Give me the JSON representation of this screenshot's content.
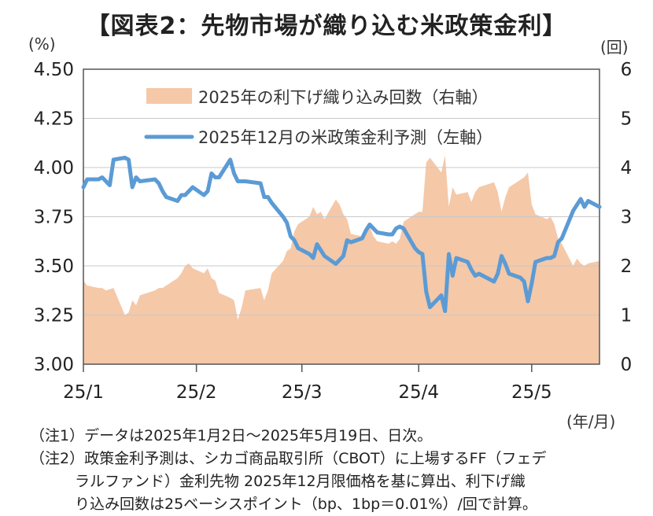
{
  "title": "【図表2：先物市場が織り込む米政策金利】",
  "left_unit": "(%)",
  "right_unit": "(回)",
  "x_unit": "(年/月)",
  "notes": [
    "（注1）データは2025年1月2日～2025年5月19日、日次。",
    "（注2）政策金利予測は、シカゴ商品取引所（CBOT）に上場するFF（フェデ",
    "　　　ラルファンド）金利先物 2025年12月限価格を基に算出、利下げ織",
    "　　　り込み回数は25ベーシスポイント（bp、1bp＝0.01%）/回で計算。"
  ],
  "chart_data": {
    "type": "line+area",
    "x_range": [
      "2025-01-02",
      "2025-05-19"
    ],
    "x_ticks": [
      "25/1",
      "25/2",
      "25/3",
      "25/4",
      "25/5"
    ],
    "y_left": {
      "ticks": [
        "3.00",
        "3.25",
        "3.50",
        "3.75",
        "4.00",
        "4.25",
        "4.50"
      ],
      "range": [
        3.0,
        4.5
      ]
    },
    "y_right": {
      "ticks": [
        "0",
        "1",
        "2",
        "3",
        "4",
        "5",
        "6"
      ],
      "range": [
        0,
        6
      ]
    },
    "grid": "horizontal",
    "legend_position": "top-center",
    "series": [
      {
        "name": "2025年の利下げ織り込み回数（右軸）",
        "axis": "right",
        "style": "area",
        "color": "#f5c8a8",
        "points": [
          [
            "2025-01-02",
            1.7
          ],
          [
            "2025-01-03",
            1.6
          ],
          [
            "2025-01-06",
            1.55
          ],
          [
            "2025-01-07",
            1.55
          ],
          [
            "2025-01-08",
            1.5
          ],
          [
            "2025-01-10",
            1.55
          ],
          [
            "2025-01-13",
            1.0
          ],
          [
            "2025-01-14",
            1.05
          ],
          [
            "2025-01-15",
            1.3
          ],
          [
            "2025-01-16",
            1.2
          ],
          [
            "2025-01-17",
            1.4
          ],
          [
            "2025-01-21",
            1.5
          ],
          [
            "2025-01-22",
            1.55
          ],
          [
            "2025-01-23",
            1.55
          ],
          [
            "2025-01-24",
            1.6
          ],
          [
            "2025-01-27",
            1.75
          ],
          [
            "2025-01-28",
            1.85
          ],
          [
            "2025-01-29",
            2.0
          ],
          [
            "2025-01-30",
            2.05
          ],
          [
            "2025-01-31",
            1.95
          ],
          [
            "2025-02-03",
            1.85
          ],
          [
            "2025-02-04",
            1.95
          ],
          [
            "2025-02-05",
            1.75
          ],
          [
            "2025-02-06",
            1.7
          ],
          [
            "2025-02-07",
            1.45
          ],
          [
            "2025-02-10",
            1.35
          ],
          [
            "2025-02-11",
            1.3
          ],
          [
            "2025-02-12",
            0.9
          ],
          [
            "2025-02-13",
            1.15
          ],
          [
            "2025-02-14",
            1.5
          ],
          [
            "2025-02-18",
            1.55
          ],
          [
            "2025-02-19",
            1.3
          ],
          [
            "2025-02-20",
            1.5
          ],
          [
            "2025-02-21",
            1.85
          ],
          [
            "2025-02-24",
            2.1
          ],
          [
            "2025-02-25",
            2.3
          ],
          [
            "2025-02-26",
            2.35
          ],
          [
            "2025-02-27",
            2.7
          ],
          [
            "2025-02-28",
            2.85
          ],
          [
            "2025-03-03",
            3.0
          ],
          [
            "2025-03-04",
            3.2
          ],
          [
            "2025-03-05",
            3.05
          ],
          [
            "2025-03-06",
            3.1
          ],
          [
            "2025-03-07",
            2.95
          ],
          [
            "2025-03-10",
            3.35
          ],
          [
            "2025-03-11",
            3.25
          ],
          [
            "2025-03-12",
            3.05
          ],
          [
            "2025-03-13",
            2.95
          ],
          [
            "2025-03-14",
            2.65
          ],
          [
            "2025-03-17",
            2.6
          ],
          [
            "2025-03-18",
            2.75
          ],
          [
            "2025-03-19",
            2.8
          ],
          [
            "2025-03-20",
            2.6
          ],
          [
            "2025-03-21",
            2.5
          ],
          [
            "2025-03-24",
            2.45
          ],
          [
            "2025-03-25",
            2.5
          ],
          [
            "2025-03-26",
            2.45
          ],
          [
            "2025-03-27",
            2.55
          ],
          [
            "2025-03-28",
            2.9
          ],
          [
            "2025-03-31",
            3.05
          ],
          [
            "2025-04-01",
            3.1
          ],
          [
            "2025-04-02",
            3.1
          ],
          [
            "2025-04-03",
            4.1
          ],
          [
            "2025-04-04",
            4.2
          ],
          [
            "2025-04-07",
            3.9
          ],
          [
            "2025-04-08",
            4.25
          ],
          [
            "2025-04-09",
            3.2
          ],
          [
            "2025-04-10",
            3.6
          ],
          [
            "2025-04-11",
            3.45
          ],
          [
            "2025-04-14",
            3.5
          ],
          [
            "2025-04-15",
            3.3
          ],
          [
            "2025-04-16",
            3.5
          ],
          [
            "2025-04-17",
            3.6
          ],
          [
            "2025-04-21",
            3.7
          ],
          [
            "2025-04-22",
            3.5
          ],
          [
            "2025-04-23",
            3.1
          ],
          [
            "2025-04-24",
            3.4
          ],
          [
            "2025-04-25",
            3.6
          ],
          [
            "2025-04-28",
            3.75
          ],
          [
            "2025-04-29",
            3.8
          ],
          [
            "2025-04-30",
            3.9
          ],
          [
            "2025-05-01",
            3.25
          ],
          [
            "2025-05-02",
            3.05
          ],
          [
            "2025-05-05",
            2.95
          ],
          [
            "2025-05-06",
            3.0
          ],
          [
            "2025-05-07",
            2.85
          ],
          [
            "2025-05-08",
            2.55
          ],
          [
            "2025-05-09",
            2.45
          ],
          [
            "2025-05-12",
            2.0
          ],
          [
            "2025-05-13",
            2.15
          ],
          [
            "2025-05-14",
            2.05
          ],
          [
            "2025-05-15",
            2.0
          ],
          [
            "2025-05-16",
            2.05
          ],
          [
            "2025-05-19",
            2.1
          ]
        ]
      },
      {
        "name": "2025年12月の米政策金利予測（左軸）",
        "axis": "left",
        "style": "line",
        "color": "#5b9bd5",
        "points": [
          [
            "2025-01-02",
            3.9
          ],
          [
            "2025-01-03",
            3.94
          ],
          [
            "2025-01-06",
            3.94
          ],
          [
            "2025-01-07",
            3.95
          ],
          [
            "2025-01-08",
            3.93
          ],
          [
            "2025-01-09",
            3.91
          ],
          [
            "2025-01-10",
            4.04
          ],
          [
            "2025-01-13",
            4.05
          ],
          [
            "2025-01-14",
            4.04
          ],
          [
            "2025-01-15",
            3.9
          ],
          [
            "2025-01-16",
            3.95
          ],
          [
            "2025-01-17",
            3.93
          ],
          [
            "2025-01-21",
            3.94
          ],
          [
            "2025-01-22",
            3.92
          ],
          [
            "2025-01-23",
            3.88
          ],
          [
            "2025-01-24",
            3.85
          ],
          [
            "2025-01-27",
            3.83
          ],
          [
            "2025-01-28",
            3.86
          ],
          [
            "2025-01-29",
            3.86
          ],
          [
            "2025-01-30",
            3.88
          ],
          [
            "2025-01-31",
            3.9
          ],
          [
            "2025-02-03",
            3.86
          ],
          [
            "2025-02-04",
            3.88
          ],
          [
            "2025-02-05",
            3.97
          ],
          [
            "2025-02-06",
            3.95
          ],
          [
            "2025-02-07",
            3.95
          ],
          [
            "2025-02-10",
            4.04
          ],
          [
            "2025-02-11",
            3.97
          ],
          [
            "2025-02-12",
            3.93
          ],
          [
            "2025-02-13",
            3.93
          ],
          [
            "2025-02-14",
            3.93
          ],
          [
            "2025-02-18",
            3.92
          ],
          [
            "2025-02-19",
            3.85
          ],
          [
            "2025-02-20",
            3.85
          ],
          [
            "2025-02-21",
            3.82
          ],
          [
            "2025-02-24",
            3.75
          ],
          [
            "2025-02-25",
            3.72
          ],
          [
            "2025-02-26",
            3.65
          ],
          [
            "2025-02-27",
            3.63
          ],
          [
            "2025-02-28",
            3.59
          ],
          [
            "2025-03-03",
            3.56
          ],
          [
            "2025-03-04",
            3.54
          ],
          [
            "2025-03-05",
            3.61
          ],
          [
            "2025-03-06",
            3.58
          ],
          [
            "2025-03-07",
            3.55
          ],
          [
            "2025-03-10",
            3.51
          ],
          [
            "2025-03-11",
            3.53
          ],
          [
            "2025-03-12",
            3.55
          ],
          [
            "2025-03-13",
            3.63
          ],
          [
            "2025-03-14",
            3.62
          ],
          [
            "2025-03-17",
            3.64
          ],
          [
            "2025-03-18",
            3.68
          ],
          [
            "2025-03-19",
            3.71
          ],
          [
            "2025-03-20",
            3.69
          ],
          [
            "2025-03-21",
            3.67
          ],
          [
            "2025-03-24",
            3.66
          ],
          [
            "2025-03-25",
            3.66
          ],
          [
            "2025-03-26",
            3.69
          ],
          [
            "2025-03-27",
            3.7
          ],
          [
            "2025-03-28",
            3.69
          ],
          [
            "2025-03-31",
            3.59
          ],
          [
            "2025-04-01",
            3.57
          ],
          [
            "2025-04-02",
            3.56
          ],
          [
            "2025-04-03",
            3.37
          ],
          [
            "2025-04-04",
            3.29
          ],
          [
            "2025-04-07",
            3.35
          ],
          [
            "2025-04-08",
            3.27
          ],
          [
            "2025-04-09",
            3.56
          ],
          [
            "2025-04-10",
            3.45
          ],
          [
            "2025-04-11",
            3.54
          ],
          [
            "2025-04-14",
            3.52
          ],
          [
            "2025-04-15",
            3.48
          ],
          [
            "2025-04-16",
            3.45
          ],
          [
            "2025-04-17",
            3.46
          ],
          [
            "2025-04-21",
            3.42
          ],
          [
            "2025-04-22",
            3.46
          ],
          [
            "2025-04-23",
            3.55
          ],
          [
            "2025-04-24",
            3.51
          ],
          [
            "2025-04-25",
            3.46
          ],
          [
            "2025-04-28",
            3.44
          ],
          [
            "2025-04-29",
            3.42
          ],
          [
            "2025-04-30",
            3.32
          ],
          [
            "2025-05-01",
            3.41
          ],
          [
            "2025-05-02",
            3.52
          ],
          [
            "2025-05-05",
            3.54
          ],
          [
            "2025-05-06",
            3.54
          ],
          [
            "2025-05-07",
            3.55
          ],
          [
            "2025-05-08",
            3.62
          ],
          [
            "2025-05-09",
            3.64
          ],
          [
            "2025-05-12",
            3.78
          ],
          [
            "2025-05-13",
            3.81
          ],
          [
            "2025-05-14",
            3.84
          ],
          [
            "2025-05-15",
            3.8
          ],
          [
            "2025-05-16",
            3.83
          ],
          [
            "2025-05-19",
            3.8
          ]
        ]
      }
    ]
  }
}
